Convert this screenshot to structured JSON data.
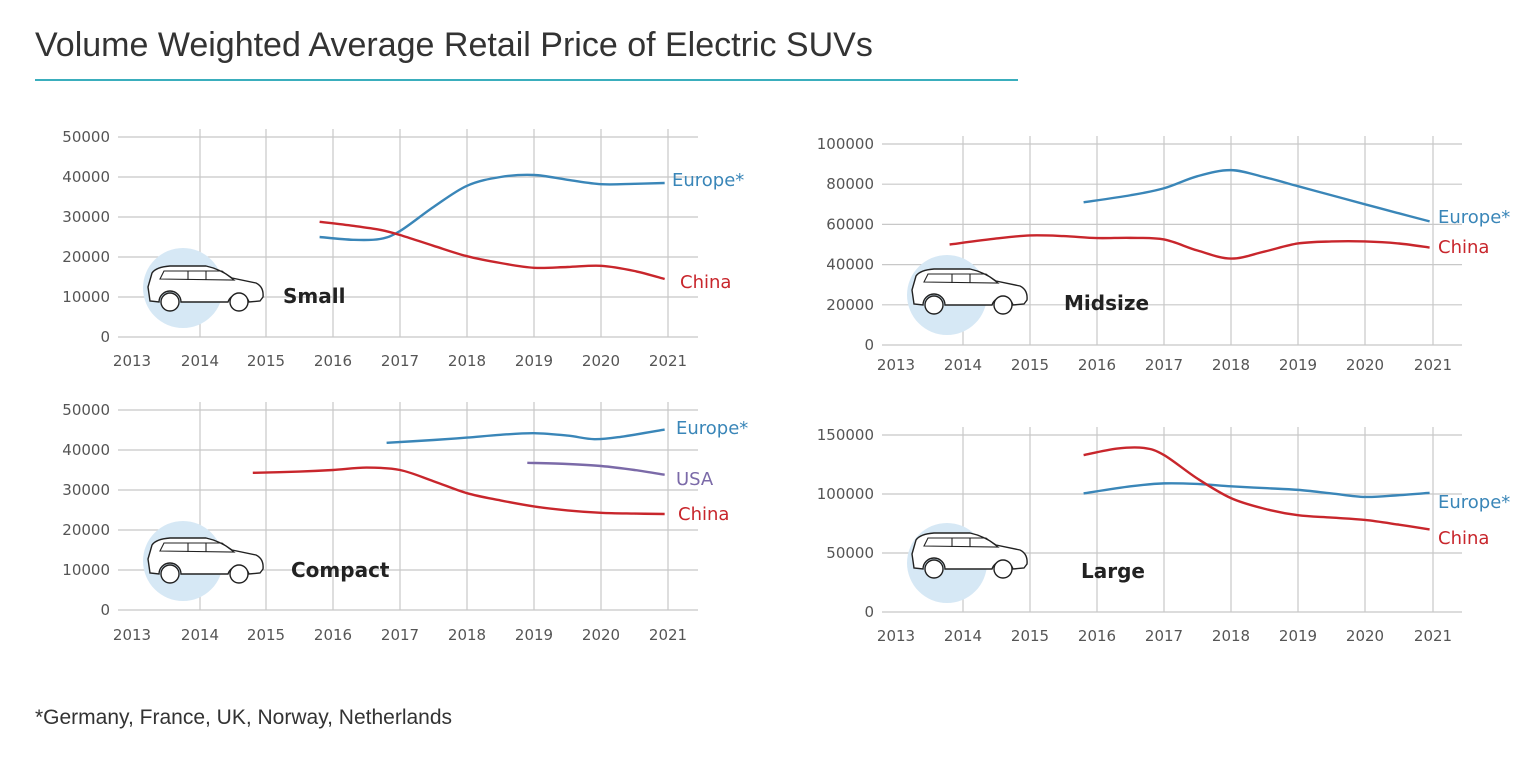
{
  "title": "Volume Weighted Average Retail Price of Electric SUVs",
  "footnote": "*Germany, France, UK, Norway, Netherlands",
  "colors": {
    "Europe*": "#3a86b8",
    "China": "#c8262c",
    "USA": "#7b6aa8",
    "accent": "#3aaebd",
    "badge": "#d6e8f5"
  },
  "icons": {
    "car": "suv-car-icon"
  },
  "chart_data": [
    {
      "type": "line",
      "label": "Small",
      "x_ticks": [
        "2013",
        "2014",
        "2015",
        "2016",
        "2017",
        "2018",
        "2019",
        "2020",
        "2021"
      ],
      "y_ticks": [
        "0",
        "10000",
        "20000",
        "30000",
        "40000",
        "50000"
      ],
      "ylim": [
        0,
        50000
      ],
      "xlim": [
        2013,
        2021
      ],
      "grid": true,
      "series": [
        {
          "name": "Europe*",
          "x": [
            2015.8,
            2016.3,
            2016.7,
            2017,
            2017.5,
            2018,
            2018.5,
            2019,
            2019.5,
            2020,
            2020.5,
            2020.95
          ],
          "y": [
            25000,
            24300,
            24500,
            26500,
            32500,
            37800,
            40000,
            40500,
            39300,
            38200,
            38300,
            38500
          ]
        },
        {
          "name": "China",
          "x": [
            2015.8,
            2016.3,
            2016.7,
            2017,
            2017.5,
            2018,
            2018.5,
            2019,
            2019.5,
            2020,
            2020.5,
            2020.95
          ],
          "y": [
            28800,
            27800,
            26800,
            25500,
            22800,
            20200,
            18500,
            17300,
            17500,
            17800,
            16500,
            14500
          ]
        }
      ]
    },
    {
      "type": "line",
      "label": "Midsize",
      "x_ticks": [
        "2013",
        "2014",
        "2015",
        "2016",
        "2017",
        "2018",
        "2019",
        "2020",
        "2021"
      ],
      "y_ticks": [
        "0",
        "20000",
        "40000",
        "60000",
        "80000",
        "100000"
      ],
      "ylim": [
        0,
        100000
      ],
      "xlim": [
        2013,
        2021
      ],
      "grid": true,
      "series": [
        {
          "name": "Europe*",
          "x": [
            2015.8,
            2016.5,
            2017,
            2017.5,
            2018,
            2018.5,
            2019,
            2019.5,
            2020,
            2020.5,
            2020.95
          ],
          "y": [
            71000,
            74500,
            78000,
            84000,
            87000,
            83500,
            79000,
            74500,
            70000,
            65500,
            61500
          ]
        },
        {
          "name": "China",
          "x": [
            2013.8,
            2014.5,
            2015,
            2015.5,
            2016,
            2016.5,
            2017,
            2017.5,
            2018,
            2018.5,
            2019,
            2019.5,
            2020,
            2020.5,
            2020.95
          ],
          "y": [
            50000,
            53000,
            54500,
            54200,
            53200,
            53300,
            52500,
            47000,
            43000,
            46500,
            50500,
            51500,
            51500,
            50500,
            48500
          ]
        }
      ]
    },
    {
      "type": "line",
      "label": "Compact",
      "x_ticks": [
        "2013",
        "2014",
        "2015",
        "2016",
        "2017",
        "2018",
        "2019",
        "2020",
        "2021"
      ],
      "y_ticks": [
        "0",
        "10000",
        "20000",
        "30000",
        "40000",
        "50000"
      ],
      "ylim": [
        0,
        50000
      ],
      "xlim": [
        2013,
        2021
      ],
      "grid": true,
      "series": [
        {
          "name": "Europe*",
          "x": [
            2016.8,
            2017.5,
            2018,
            2018.5,
            2019,
            2019.5,
            2019.9,
            2020.3,
            2020.95
          ],
          "y": [
            41800,
            42500,
            43100,
            43800,
            44200,
            43600,
            42700,
            43300,
            45100
          ]
        },
        {
          "name": "USA",
          "x": [
            2018.9,
            2019.5,
            2020,
            2020.5,
            2020.95
          ],
          "y": [
            36800,
            36500,
            36000,
            35000,
            33800
          ]
        },
        {
          "name": "China",
          "x": [
            2014.8,
            2015.5,
            2016,
            2016.5,
            2017,
            2017.5,
            2018,
            2018.5,
            2019,
            2019.5,
            2020,
            2020.5,
            2020.95
          ],
          "y": [
            34300,
            34600,
            35000,
            35600,
            35000,
            32200,
            29200,
            27400,
            25900,
            24900,
            24300,
            24100,
            24000
          ]
        }
      ]
    },
    {
      "type": "line",
      "label": "Large",
      "x_ticks": [
        "2013",
        "2014",
        "2015",
        "2016",
        "2017",
        "2018",
        "2019",
        "2020",
        "2021"
      ],
      "y_ticks": [
        "0",
        "50000",
        "100000",
        "150000"
      ],
      "ylim": [
        0,
        150000
      ],
      "xlim": [
        2013,
        2021
      ],
      "grid": true,
      "series": [
        {
          "name": "Europe*",
          "x": [
            2015.8,
            2016.5,
            2017,
            2017.5,
            2018,
            2018.5,
            2019,
            2019.5,
            2020,
            2020.5,
            2020.95
          ],
          "y": [
            100500,
            106500,
            109000,
            108500,
            106500,
            105000,
            103500,
            100500,
            97500,
            99000,
            101000
          ]
        },
        {
          "name": "China",
          "x": [
            2015.8,
            2016.3,
            2016.7,
            2017,
            2017.5,
            2018,
            2018.5,
            2019,
            2019.5,
            2020,
            2020.5,
            2020.95
          ],
          "y": [
            133000,
            138500,
            139000,
            133000,
            113000,
            96500,
            87500,
            82000,
            80000,
            78000,
            74000,
            70000
          ]
        }
      ]
    }
  ]
}
